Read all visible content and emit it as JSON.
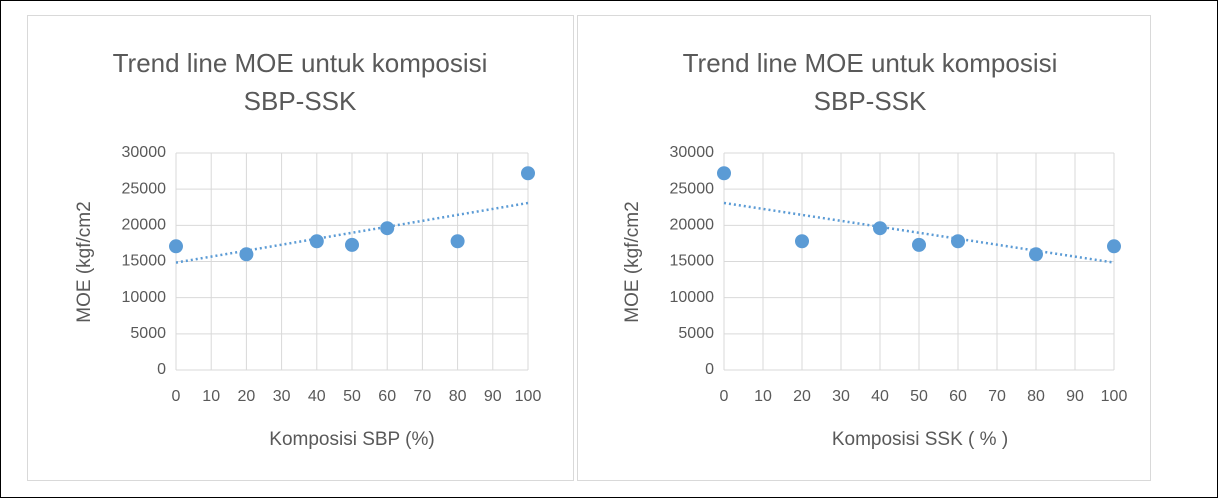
{
  "chart_data": [
    {
      "type": "scatter",
      "title": [
        "Trend line MOE untuk komposisi",
        "SBP-SSK"
      ],
      "x_label": "Komposisi SBP (%)",
      "y_label": "MOE (kgf/cm2",
      "x": [
        0,
        20,
        40,
        50,
        60,
        80,
        100
      ],
      "values": [
        17100,
        16000,
        17800,
        17300,
        19600,
        17800,
        27200
      ],
      "color": "#5b9bd5",
      "trendline": "linear",
      "grid": true,
      "xlim": [
        0,
        100
      ],
      "xticks": [
        0,
        10,
        20,
        30,
        40,
        50,
        60,
        70,
        80,
        90,
        100
      ],
      "ylim": [
        0,
        30000
      ],
      "yticks": [
        0,
        5000,
        10000,
        15000,
        20000,
        25000,
        30000
      ]
    },
    {
      "type": "scatter",
      "title": [
        "Trend line MOE untuk komposisi",
        "SBP-SSK"
      ],
      "x_label": "Komposisi SSK ( % )",
      "y_label": "MOE (kgf/cm2",
      "x": [
        0,
        20,
        40,
        50,
        60,
        80,
        100
      ],
      "values": [
        27200,
        17800,
        19600,
        17300,
        17800,
        16000,
        17100
      ],
      "color": "#5b9bd5",
      "trendline": "linear",
      "grid": true,
      "xlim": [
        0,
        100
      ],
      "xticks": [
        0,
        10,
        20,
        30,
        40,
        50,
        60,
        70,
        80,
        90,
        100
      ],
      "ylim": [
        0,
        30000
      ],
      "yticks": [
        0,
        5000,
        10000,
        15000,
        20000,
        25000,
        30000
      ]
    }
  ]
}
